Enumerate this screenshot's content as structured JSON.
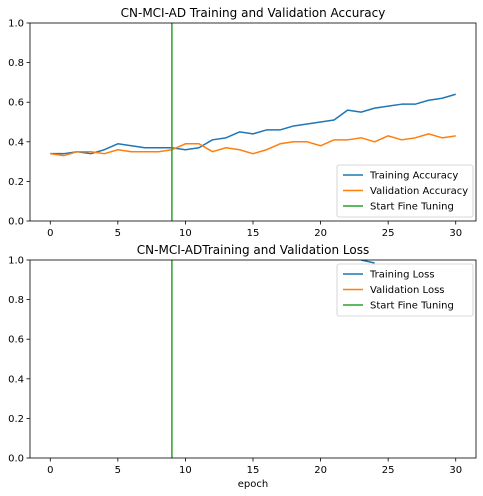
{
  "chart_data": [
    {
      "type": "line",
      "title": "CN-MCI-AD Training and Validation Accuracy",
      "xlabel": "",
      "ylabel": "",
      "xlim": [
        -1.5,
        31.5
      ],
      "ylim": [
        0.0,
        1.0
      ],
      "xticks": [
        0,
        5,
        10,
        15,
        20,
        25,
        30
      ],
      "yticks": [
        0.0,
        0.2,
        0.4,
        0.6,
        0.8,
        1.0
      ],
      "ytick_labels": [
        "0.0",
        "0.2",
        "0.4",
        "0.6",
        "0.8",
        "1.0"
      ],
      "legend_position": "lower-right",
      "series": [
        {
          "name": "Training Accuracy",
          "color": "#1f77b4",
          "x": [
            0,
            1,
            2,
            3,
            4,
            5,
            6,
            7,
            8,
            9,
            10,
            11,
            12,
            13,
            14,
            15,
            16,
            17,
            18,
            19,
            20,
            21,
            22,
            23,
            24,
            25,
            26,
            27,
            28,
            29,
            30
          ],
          "values": [
            0.34,
            0.34,
            0.35,
            0.34,
            0.36,
            0.39,
            0.38,
            0.37,
            0.37,
            0.37,
            0.36,
            0.37,
            0.41,
            0.42,
            0.45,
            0.44,
            0.46,
            0.46,
            0.48,
            0.49,
            0.5,
            0.51,
            0.56,
            0.55,
            0.57,
            0.58,
            0.59,
            0.59,
            0.61,
            0.62,
            0.64
          ]
        },
        {
          "name": "Validation Accuracy",
          "color": "#ff7f0e",
          "x": [
            0,
            1,
            2,
            3,
            4,
            5,
            6,
            7,
            8,
            9,
            10,
            11,
            12,
            13,
            14,
            15,
            16,
            17,
            18,
            19,
            20,
            21,
            22,
            23,
            24,
            25,
            26,
            27,
            28,
            29,
            30
          ],
          "values": [
            0.34,
            0.33,
            0.35,
            0.35,
            0.34,
            0.36,
            0.35,
            0.35,
            0.35,
            0.36,
            0.39,
            0.39,
            0.35,
            0.37,
            0.36,
            0.34,
            0.36,
            0.39,
            0.4,
            0.4,
            0.38,
            0.41,
            0.41,
            0.42,
            0.4,
            0.43,
            0.41,
            0.42,
            0.44,
            0.42,
            0.43
          ]
        }
      ],
      "vlines": [
        {
          "name": "Start Fine Tuning",
          "color": "#2ca02c",
          "x": 9
        }
      ]
    },
    {
      "type": "line",
      "title": "CN-MCI-ADTraining and Validation Loss",
      "xlabel": "epoch",
      "ylabel": "",
      "xlim": [
        -1.5,
        31.5
      ],
      "ylim": [
        0.0,
        1.0
      ],
      "xticks": [
        0,
        5,
        10,
        15,
        20,
        25,
        30
      ],
      "yticks": [
        0.0,
        0.2,
        0.4,
        0.6,
        0.8,
        1.0
      ],
      "ytick_labels": [
        "0.0",
        "0.2",
        "0.4",
        "0.6",
        "0.8",
        "1.0"
      ],
      "legend_position": "upper-right",
      "series": [
        {
          "name": "Training Loss",
          "color": "#1f77b4",
          "x": [
            23,
            24
          ],
          "values": [
            1.0,
            0.985
          ]
        },
        {
          "name": "Validation Loss",
          "color": "#ff7f0e",
          "x": [],
          "values": []
        }
      ],
      "vlines": [
        {
          "name": "Start Fine Tuning",
          "color": "#2ca02c",
          "x": 9
        }
      ]
    }
  ]
}
